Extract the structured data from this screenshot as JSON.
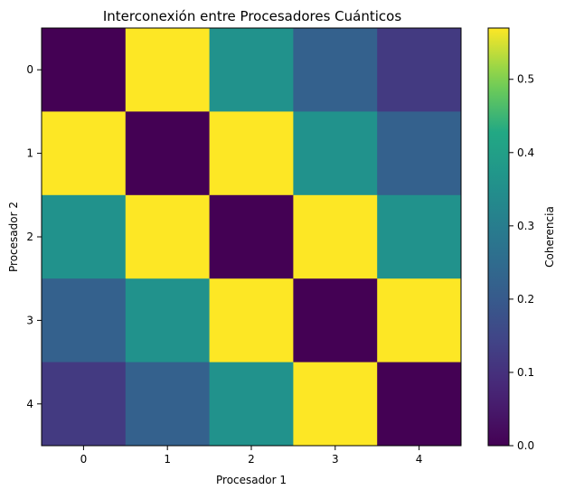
{
  "chart_data": {
    "type": "heatmap",
    "title": "Interconexión entre Procesadores Cuánticos",
    "xlabel": "Procesador 1",
    "ylabel": "Procesador 2",
    "x_categories": [
      "0",
      "1",
      "2",
      "3",
      "4"
    ],
    "y_categories": [
      "0",
      "1",
      "2",
      "3",
      "4"
    ],
    "values": [
      [
        0.0,
        0.57,
        0.36,
        0.22,
        0.12
      ],
      [
        0.57,
        0.0,
        0.57,
        0.36,
        0.22
      ],
      [
        0.36,
        0.57,
        0.0,
        0.57,
        0.36
      ],
      [
        0.22,
        0.36,
        0.57,
        0.0,
        0.57
      ],
      [
        0.12,
        0.22,
        0.36,
        0.57,
        0.0
      ]
    ],
    "colorbar": {
      "label": "Coherencia",
      "range": [
        0.0,
        0.57
      ],
      "ticks": [
        "0.0",
        "0.1",
        "0.2",
        "0.3",
        "0.4",
        "0.5"
      ],
      "colormap": "viridis"
    }
  }
}
